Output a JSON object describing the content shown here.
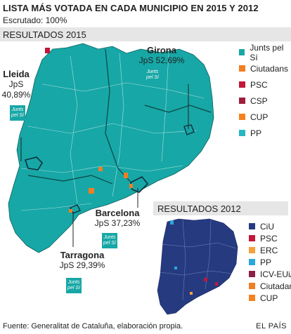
{
  "header": {
    "title": "LISTA MÁS VOTADA EN CADA MUNICIPIO EN 2015 Y 2012",
    "subtitle": "Escrutado: 100%"
  },
  "section_2015": {
    "label": "RESULTADOS 2015"
  },
  "section_2012": {
    "label": "RESULTADOS 2012"
  },
  "callouts": {
    "girona": {
      "name": "Girona",
      "value": "JpS 52,69%"
    },
    "lleida": {
      "name": "Lleida",
      "party": "JpS",
      "value": "40,89%"
    },
    "barcelona": {
      "name": "Barcelona",
      "value": "JpS 37,23%"
    },
    "tarragona": {
      "name": "Tarragona",
      "value": "JpS 29,39%"
    },
    "logo_text": "Junts pel Sí"
  },
  "legend_2015": [
    {
      "label": "Junts pel Sí",
      "color": "#17a7a6"
    },
    {
      "label": "Ciutadans",
      "color": "#f07e22"
    },
    {
      "label": "PSC",
      "color": "#c2173a"
    },
    {
      "label": "CSP",
      "color": "#a01d3a"
    },
    {
      "label": "CUP",
      "color": "#f58220"
    },
    {
      "label": "PP",
      "color": "#26b6c4"
    }
  ],
  "legend_2012": [
    {
      "label": "CiU",
      "color": "#263a80"
    },
    {
      "label": "PSC",
      "color": "#c2173a"
    },
    {
      "label": "ERC",
      "color": "#f6a13a"
    },
    {
      "label": "PP",
      "color": "#2aa7dd"
    },
    {
      "label": "ICV-EUiA",
      "color": "#8d1f48"
    },
    {
      "label": "Ciutadans",
      "color": "#f07e22"
    },
    {
      "label": "CUP",
      "color": "#f58220"
    }
  ],
  "footer": {
    "source": "Fuente: Generalitat de Cataluña, elaboración propia.",
    "brand": "EL PAÍS"
  }
}
